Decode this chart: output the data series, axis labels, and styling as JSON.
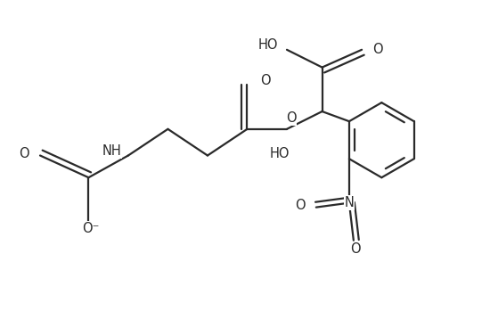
{
  "bg": "#ffffff",
  "lc": "#2a2a2a",
  "lw": 1.6,
  "fs": 10.5,
  "figsize": [
    5.5,
    3.49
  ],
  "dpi": 100,
  "xlim": [
    0,
    10.5
  ],
  "ylim": [
    0,
    7.0
  ]
}
